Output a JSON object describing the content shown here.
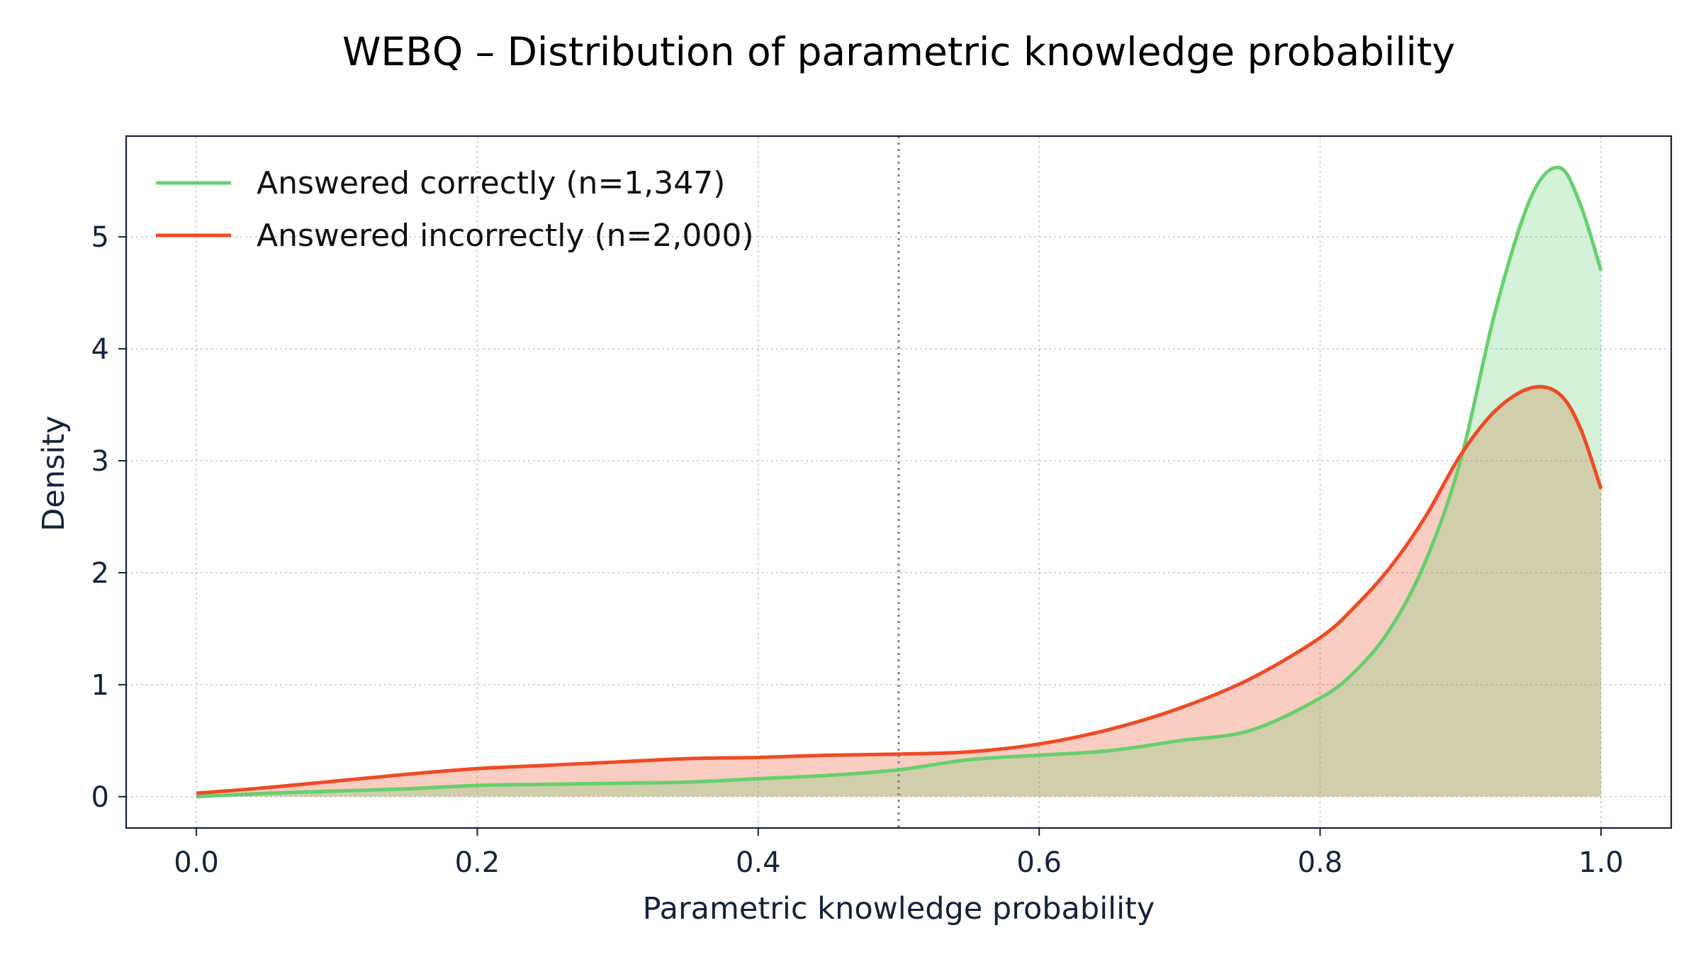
{
  "chart_data": {
    "type": "area",
    "title": "WEBQ – Distribution of parametric knowledge probability",
    "xlabel": "Parametric knowledge probability",
    "ylabel": "Density",
    "xlim": [
      -0.05,
      1.05
    ],
    "ylim": [
      -0.28,
      5.9
    ],
    "xticks": [
      "0.0",
      "0.2",
      "0.4",
      "0.6",
      "0.8",
      "1.0"
    ],
    "yticks": [
      "0",
      "1",
      "2",
      "3",
      "4",
      "5"
    ],
    "grid": true,
    "legend_position": "top-left",
    "reference_line_x": 0.5,
    "x": [
      0.0,
      0.05,
      0.1,
      0.15,
      0.2,
      0.25,
      0.3,
      0.35,
      0.4,
      0.45,
      0.5,
      0.55,
      0.6,
      0.65,
      0.7,
      0.75,
      0.8,
      0.825,
      0.85,
      0.875,
      0.9,
      0.925,
      0.95,
      0.97,
      0.985,
      1.0
    ],
    "series": [
      {
        "name": "Answered correctly (n=1,347)",
        "color": "#66d06e",
        "fill_color": "#d6f2d8",
        "values": [
          0.0,
          0.03,
          0.05,
          0.07,
          0.1,
          0.11,
          0.12,
          0.13,
          0.16,
          0.19,
          0.24,
          0.33,
          0.37,
          0.41,
          0.5,
          0.59,
          0.88,
          1.12,
          1.5,
          2.1,
          3.0,
          4.35,
          5.35,
          5.62,
          5.3,
          4.7
        ]
      },
      {
        "name": "Answered incorrectly (n=2,000)",
        "color": "#ee4b25",
        "fill_color": "#f9cbc0",
        "values": [
          0.03,
          0.08,
          0.14,
          0.2,
          0.25,
          0.28,
          0.31,
          0.34,
          0.35,
          0.37,
          0.38,
          0.4,
          0.47,
          0.6,
          0.79,
          1.05,
          1.42,
          1.7,
          2.05,
          2.5,
          3.05,
          3.45,
          3.65,
          3.6,
          3.3,
          2.75
        ]
      }
    ]
  }
}
